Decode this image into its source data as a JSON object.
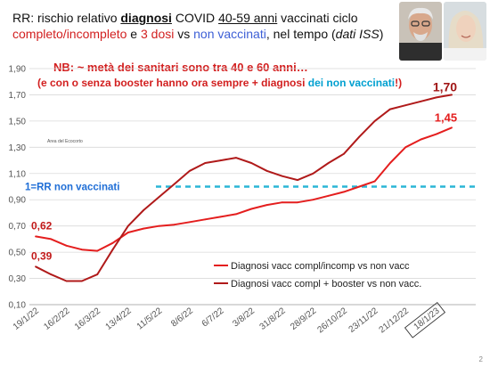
{
  "title": {
    "p1": "RR: rischio relativo ",
    "p2": "diagnosi",
    "p3": " COVID ",
    "p4": "40-59 anni",
    "p5": " vaccinati ciclo ",
    "p6": "completo/incompleto",
    "p7": " e ",
    "p8": "3 dosi",
    "p9": " vs ",
    "p10": "non vaccinati",
    "p11": ", nel tempo (",
    "p12": "dati ISS",
    "p13": ")"
  },
  "note": {
    "line1": "NB: ~ metà dei sanitari sono tra 40 e 60 anni…",
    "line2a": "(e con o senza booster hanno ora sempre + diagnosi ",
    "line2b": "dei non vaccinati",
    "line2c": "!)"
  },
  "small_text": "Area del Ecocorto",
  "page_number": "2",
  "colors": {
    "line_primary": "#e41e1e",
    "line_booster": "#b01a1a",
    "reference": "#2bb5d6",
    "axis_text": "#555555",
    "grid": "#d9d9d9"
  },
  "chart_data": {
    "type": "line",
    "title": "",
    "xlabel": "",
    "ylabel": "",
    "ylim": [
      0.1,
      1.9
    ],
    "yticks": [
      "0,10",
      "0,30",
      "0,50",
      "0,70",
      "0,90",
      "1,10",
      "1,30",
      "1,50",
      "1,70",
      "1,90"
    ],
    "categories": [
      "19/1/22",
      "16/2/22",
      "16/3/22",
      "13/4/22",
      "11/5/22",
      "8/6/22",
      "6/7/22",
      "3/8/22",
      "31/8/22",
      "28/9/22",
      "26/10/22",
      "23/11/22",
      "21/12/22",
      "18/1/23"
    ],
    "highlighted_category": "18/1/23",
    "grid": true,
    "legend_position": "bottom-right",
    "series": [
      {
        "name": "Diagnosi vacc  compl/incomp vs non vacc",
        "color_key": "line_primary",
        "x": [
          0,
          0.5,
          1,
          1.5,
          2,
          2.5,
          3,
          3.5,
          4,
          4.5,
          5,
          5.5,
          6,
          6.5,
          7,
          7.5,
          8,
          8.5,
          9,
          9.5,
          10,
          10.5,
          11,
          11.5,
          12,
          12.5,
          13,
          13.5
        ],
        "values": [
          0.62,
          0.6,
          0.55,
          0.52,
          0.51,
          0.57,
          0.65,
          0.68,
          0.7,
          0.71,
          0.73,
          0.75,
          0.77,
          0.79,
          0.83,
          0.86,
          0.88,
          0.88,
          0.9,
          0.93,
          0.96,
          1.0,
          1.04,
          1.18,
          1.3,
          1.36,
          1.4,
          1.45
        ],
        "end_label": "1,45",
        "start_label": "0,62"
      },
      {
        "name": "Diagnosi vacc compl + booster vs non vacc.",
        "color_key": "line_booster",
        "x": [
          0,
          0.5,
          1,
          1.5,
          2,
          2.5,
          3,
          3.5,
          4,
          4.5,
          5,
          5.5,
          6,
          6.5,
          7,
          7.5,
          8,
          8.5,
          9,
          9.5,
          10,
          10.5,
          11,
          11.5,
          12,
          12.5,
          13,
          13.5
        ],
        "values": [
          0.39,
          0.33,
          0.28,
          0.28,
          0.33,
          0.52,
          0.7,
          0.82,
          0.92,
          1.02,
          1.12,
          1.18,
          1.2,
          1.22,
          1.18,
          1.12,
          1.08,
          1.05,
          1.1,
          1.18,
          1.25,
          1.38,
          1.5,
          1.59,
          1.62,
          1.65,
          1.68,
          1.7
        ],
        "end_label": "1,70",
        "start_label": "0,39"
      }
    ],
    "reference_line": {
      "value": 1.0,
      "label": "1=RR non vaccinati"
    }
  }
}
